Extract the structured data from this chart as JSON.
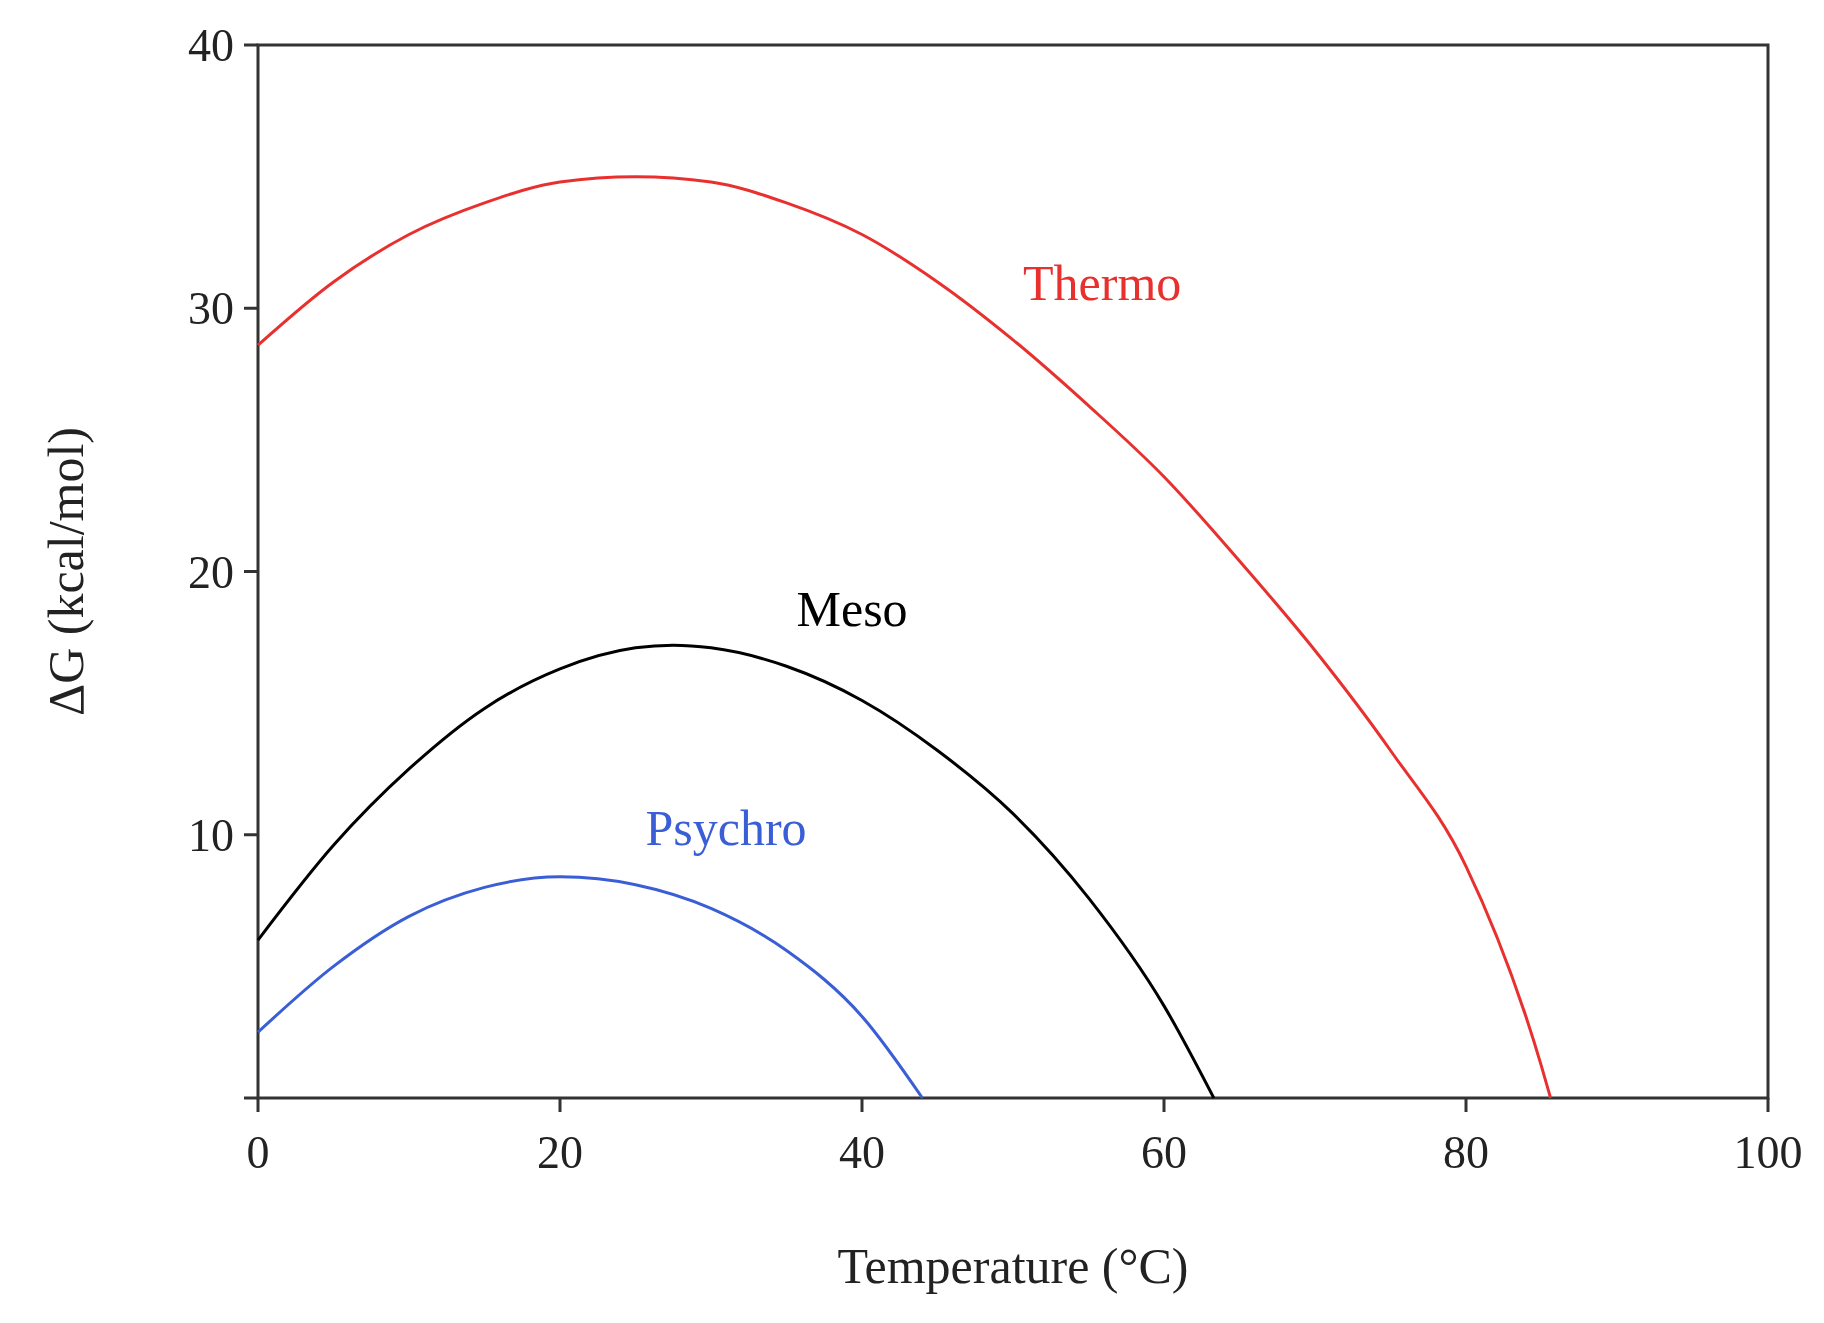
{
  "chart_data": {
    "type": "line",
    "xlabel": "Temperature (°C)",
    "ylabel": "ΔG (kcal/mol)",
    "xlim": [
      0,
      100
    ],
    "xticks": [
      0,
      20,
      40,
      60,
      80,
      100
    ],
    "ylim": [
      0,
      40
    ],
    "yticks": [
      {
        "value": 0,
        "label": null
      },
      10,
      20,
      30,
      40
    ],
    "grid": false,
    "marker": "none",
    "line_style": "solid",
    "series": [
      {
        "name": "Thermo",
        "color": "#e8312f",
        "x": [
          0,
          5,
          10,
          15,
          20,
          25,
          30,
          35,
          40,
          45,
          50,
          55,
          60,
          65,
          70,
          75,
          80,
          85,
          85.6
        ],
        "values": [
          28.6,
          31.0,
          32.8,
          34.0,
          34.8,
          35.0,
          34.8,
          34.0,
          32.8,
          31.0,
          28.8,
          26.3,
          23.6,
          20.4,
          17.0,
          13.2,
          8.8,
          1.2,
          0
        ]
      },
      {
        "name": "Meso",
        "color": "#000000",
        "x": [
          0,
          5,
          10,
          15,
          20,
          25,
          27.5,
          30,
          35,
          40,
          45,
          50,
          55,
          60,
          63.3
        ],
        "values": [
          6.0,
          9.6,
          12.5,
          14.8,
          16.3,
          17.1,
          17.2,
          17.1,
          16.4,
          15.1,
          13.2,
          10.8,
          7.6,
          3.5,
          0
        ]
      },
      {
        "name": "Psychro",
        "color": "#3a5ed6",
        "x": [
          0,
          5,
          10,
          15,
          20,
          25,
          30,
          35,
          40,
          44
        ],
        "values": [
          2.5,
          5.0,
          6.9,
          8.0,
          8.4,
          8.1,
          7.2,
          5.6,
          3.1,
          0
        ]
      }
    ]
  }
}
